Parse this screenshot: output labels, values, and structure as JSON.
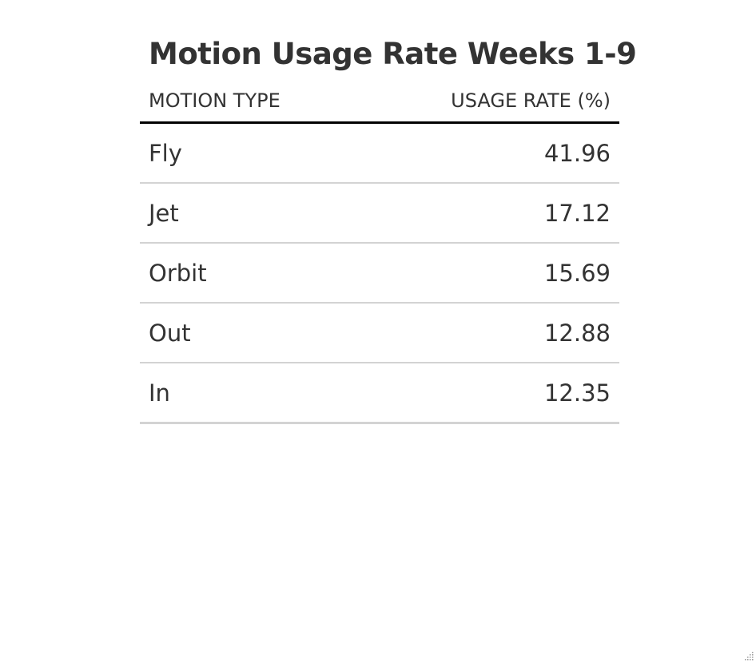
{
  "chart_data": {
    "type": "table",
    "title": "Motion Usage Rate Weeks 1-9",
    "columns": [
      "MOTION TYPE",
      "USAGE RATE (%)"
    ],
    "rows": [
      {
        "motion": "Fly",
        "rate": "41.96"
      },
      {
        "motion": "Jet",
        "rate": "17.12"
      },
      {
        "motion": "Orbit",
        "rate": "15.69"
      },
      {
        "motion": "Out",
        "rate": "12.88"
      },
      {
        "motion": "In",
        "rate": "12.35"
      }
    ],
    "categories": [
      "Fly",
      "Jet",
      "Orbit",
      "Out",
      "In"
    ],
    "values": [
      41.96,
      17.12,
      15.69,
      12.88,
      12.35
    ]
  },
  "colors": {
    "text": "#333333",
    "header_rule": "#000000",
    "row_rule": "#d3d3d3"
  },
  "icons": {
    "corner": "resize-grip-icon"
  }
}
